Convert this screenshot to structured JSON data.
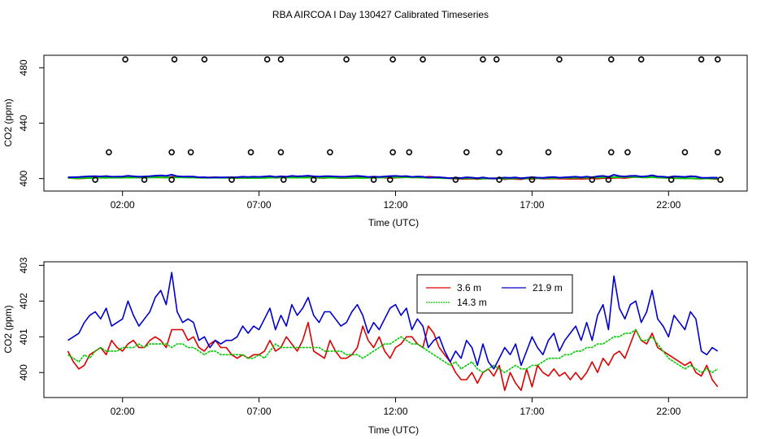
{
  "title": "RBA AIRCOA I  Day 130427  Calibrated Timeseries",
  "colors": {
    "red": "#dd0000",
    "green": "#00cc00",
    "blue": "#0000cc",
    "black": "#000000"
  },
  "chart_data": [
    {
      "type": "scatter",
      "name": "upper",
      "xlabel": "Time (UTC)",
      "ylabel": "CO2 (ppm)",
      "xlim": [
        -0.88,
        24.88
      ],
      "ylim": [
        391,
        489
      ],
      "xticks": [
        2,
        7,
        12,
        17,
        22
      ],
      "xtick_labels": [
        "02:00",
        "07:00",
        "12:00",
        "17:00",
        "22:00"
      ],
      "yticks": [
        400,
        440,
        480
      ],
      "ytick_labels": [
        "400",
        "440",
        "480"
      ],
      "points_high": [
        [
          2.1,
          486
        ],
        [
          3.9,
          486
        ],
        [
          5.0,
          486
        ],
        [
          7.3,
          486
        ],
        [
          7.8,
          486
        ],
        [
          10.2,
          486
        ],
        [
          11.9,
          486
        ],
        [
          13.0,
          486
        ],
        [
          15.2,
          486
        ],
        [
          15.7,
          486
        ],
        [
          18.0,
          486
        ],
        [
          19.9,
          486
        ],
        [
          21.0,
          486
        ],
        [
          23.2,
          486
        ],
        [
          23.8,
          486
        ]
      ],
      "points_mid": [
        [
          1.5,
          419
        ],
        [
          3.8,
          419
        ],
        [
          4.5,
          419
        ],
        [
          6.7,
          419
        ],
        [
          7.8,
          419
        ],
        [
          9.6,
          419
        ],
        [
          11.9,
          419
        ],
        [
          12.5,
          419
        ],
        [
          14.6,
          419
        ],
        [
          15.8,
          419
        ],
        [
          17.6,
          419
        ],
        [
          19.9,
          419
        ],
        [
          20.5,
          419
        ],
        [
          22.6,
          419
        ],
        [
          23.8,
          419
        ]
      ],
      "points_low": [
        [
          1.0,
          399.2
        ],
        [
          2.8,
          399.2
        ],
        [
          3.8,
          399.2
        ],
        [
          6.0,
          399.2
        ],
        [
          7.9,
          399.2
        ],
        [
          9.0,
          399.2
        ],
        [
          11.2,
          399.2
        ],
        [
          11.8,
          399.2
        ],
        [
          14.2,
          399.2
        ],
        [
          15.8,
          399.2
        ],
        [
          17.0,
          399.2
        ],
        [
          19.2,
          399.2
        ],
        [
          19.8,
          399.2
        ],
        [
          22.1,
          399.2
        ],
        [
          23.9,
          399.2
        ]
      ]
    },
    {
      "type": "line",
      "name": "lower",
      "xlabel": "Time (UTC)",
      "ylabel": "CO2 (ppm)",
      "xlim": [
        -0.88,
        24.88
      ],
      "ylim": [
        399.3,
        403.1
      ],
      "xticks": [
        2,
        7,
        12,
        17,
        22
      ],
      "xtick_labels": [
        "02:00",
        "07:00",
        "12:00",
        "17:00",
        "22:00"
      ],
      "yticks": [
        400,
        401,
        402,
        403
      ],
      "ytick_labels": [
        "400",
        "401",
        "402",
        "403"
      ],
      "legend": {
        "position": "top-center",
        "entries": [
          "3.6 m",
          "21.9 m",
          "14.3 m"
        ]
      },
      "series": [
        {
          "name": "3.6 m",
          "color": "red",
          "x": [
            0.0,
            0.2,
            0.4,
            0.6,
            0.8,
            1.0,
            1.2,
            1.4,
            1.6,
            1.8,
            2.0,
            2.2,
            2.4,
            2.6,
            2.8,
            3.0,
            3.2,
            3.4,
            3.6,
            3.8,
            4.0,
            4.2,
            4.4,
            4.6,
            4.8,
            5.0,
            5.2,
            5.4,
            5.6,
            5.8,
            6.0,
            6.2,
            6.4,
            6.6,
            6.8,
            7.0,
            7.2,
            7.4,
            7.6,
            7.8,
            8.0,
            8.2,
            8.4,
            8.6,
            8.8,
            9.0,
            9.2,
            9.4,
            9.6,
            9.8,
            10.0,
            10.2,
            10.4,
            10.6,
            10.8,
            11.0,
            11.2,
            11.4,
            11.6,
            11.8,
            12.0,
            12.2,
            12.4,
            12.6,
            12.8,
            13.0,
            13.2,
            13.4,
            13.6,
            13.8,
            14.0,
            14.2,
            14.4,
            14.6,
            14.8,
            15.0,
            15.2,
            15.4,
            15.6,
            15.8,
            16.0,
            16.2,
            16.4,
            16.6,
            16.8,
            17.0,
            17.2,
            17.4,
            17.6,
            17.8,
            18.0,
            18.2,
            18.4,
            18.6,
            18.8,
            19.0,
            19.2,
            19.4,
            19.6,
            19.8,
            20.0,
            20.2,
            20.4,
            20.6,
            20.8,
            21.0,
            21.2,
            21.4,
            21.6,
            21.8,
            22.0,
            22.2,
            22.4,
            22.6,
            22.8,
            23.0,
            23.2,
            23.4,
            23.6,
            23.8
          ],
          "values": [
            400.6,
            400.3,
            400.1,
            400.2,
            400.5,
            400.6,
            400.7,
            400.5,
            400.9,
            400.7,
            400.6,
            400.8,
            400.9,
            400.7,
            400.7,
            400.9,
            401.0,
            400.9,
            400.7,
            401.2,
            401.2,
            401.2,
            400.9,
            401.0,
            400.7,
            400.6,
            400.8,
            400.9,
            400.7,
            400.7,
            400.5,
            400.4,
            400.5,
            400.4,
            400.5,
            400.5,
            400.6,
            400.9,
            400.6,
            400.7,
            401.0,
            400.8,
            400.6,
            400.9,
            401.4,
            400.6,
            400.5,
            400.4,
            400.9,
            400.6,
            400.4,
            400.4,
            400.5,
            400.7,
            401.3,
            400.9,
            400.7,
            401.0,
            400.6,
            400.4,
            400.7,
            400.8,
            401.0,
            401.0,
            400.8,
            400.7,
            401.3,
            401.1,
            400.7,
            400.5,
            400.3,
            400.0,
            399.8,
            399.8,
            400.0,
            399.7,
            400.0,
            400.1,
            399.9,
            400.2,
            399.5,
            400.0,
            399.7,
            399.5,
            400.1,
            399.6,
            400.2,
            400.0,
            399.9,
            400.1,
            399.9,
            400.0,
            399.8,
            400.0,
            399.8,
            400.0,
            400.3,
            400.0,
            400.4,
            400.2,
            400.5,
            400.6,
            400.4,
            400.8,
            401.2,
            400.9,
            400.8,
            401.1,
            400.7,
            400.6,
            400.5,
            400.4,
            400.3,
            400.2,
            400.3,
            400.0,
            399.9,
            400.2,
            399.8,
            399.6
          ]
        },
        {
          "name": "14.3 m",
          "color": "green",
          "x": [
            0.0,
            0.2,
            0.4,
            0.6,
            0.8,
            1.0,
            1.2,
            1.4,
            1.6,
            1.8,
            2.0,
            2.2,
            2.4,
            2.6,
            2.8,
            3.0,
            3.2,
            3.4,
            3.6,
            3.8,
            4.0,
            4.2,
            4.4,
            4.6,
            4.8,
            5.0,
            5.2,
            5.4,
            5.6,
            5.8,
            6.0,
            6.2,
            6.4,
            6.6,
            6.8,
            7.0,
            7.2,
            7.4,
            7.6,
            7.8,
            8.0,
            8.2,
            8.4,
            8.6,
            8.8,
            9.0,
            9.2,
            9.4,
            9.6,
            9.8,
            10.0,
            10.2,
            10.4,
            10.6,
            10.8,
            11.0,
            11.2,
            11.4,
            11.6,
            11.8,
            12.0,
            12.2,
            12.4,
            12.6,
            12.8,
            13.0,
            13.2,
            13.4,
            13.6,
            13.8,
            14.0,
            14.2,
            14.4,
            14.6,
            14.8,
            15.0,
            15.2,
            15.4,
            15.6,
            15.8,
            16.0,
            16.2,
            16.4,
            16.6,
            16.8,
            17.0,
            17.2,
            17.4,
            17.6,
            17.8,
            18.0,
            18.2,
            18.4,
            18.6,
            18.8,
            19.0,
            19.2,
            19.4,
            19.6,
            19.8,
            20.0,
            20.2,
            20.4,
            20.6,
            20.8,
            21.0,
            21.2,
            21.4,
            21.6,
            21.8,
            22.0,
            22.2,
            22.4,
            22.6,
            22.8,
            23.0,
            23.2,
            23.4,
            23.6,
            23.8
          ],
          "values": [
            400.5,
            400.4,
            400.3,
            400.5,
            400.4,
            400.6,
            400.7,
            400.6,
            400.6,
            400.6,
            400.7,
            400.7,
            400.7,
            400.8,
            400.7,
            400.8,
            400.8,
            400.8,
            400.8,
            400.7,
            400.8,
            400.8,
            400.7,
            400.7,
            400.6,
            400.5,
            400.6,
            400.6,
            400.5,
            400.5,
            400.5,
            400.5,
            400.5,
            400.4,
            400.4,
            400.5,
            400.4,
            400.6,
            400.8,
            400.7,
            400.7,
            400.7,
            400.7,
            400.7,
            400.7,
            400.7,
            400.7,
            400.6,
            400.6,
            400.6,
            400.6,
            400.5,
            400.5,
            400.5,
            400.4,
            400.5,
            400.6,
            400.7,
            400.8,
            400.8,
            400.9,
            401.0,
            400.9,
            400.8,
            400.8,
            400.7,
            400.6,
            400.5,
            400.4,
            400.3,
            400.2,
            400.3,
            400.1,
            400.2,
            400.3,
            400.1,
            400.0,
            400.1,
            400.2,
            400.1,
            400.0,
            400.1,
            400.2,
            400.1,
            400.1,
            400.2,
            400.2,
            400.3,
            400.4,
            400.4,
            400.4,
            400.5,
            400.5,
            400.6,
            400.6,
            400.7,
            400.7,
            400.8,
            400.8,
            400.9,
            401.0,
            401.0,
            401.1,
            401.1,
            401.2,
            400.9,
            400.9,
            401.0,
            400.8,
            400.6,
            400.4,
            400.3,
            400.2,
            400.1,
            400.2,
            400.1,
            400.0,
            400.1,
            400.0,
            400.1
          ]
        },
        {
          "name": "21.9 m",
          "color": "blue",
          "x": [
            0.0,
            0.2,
            0.4,
            0.6,
            0.8,
            1.0,
            1.2,
            1.4,
            1.6,
            1.8,
            2.0,
            2.2,
            2.4,
            2.6,
            2.8,
            3.0,
            3.2,
            3.4,
            3.6,
            3.8,
            4.0,
            4.2,
            4.4,
            4.6,
            4.8,
            5.0,
            5.2,
            5.4,
            5.6,
            5.8,
            6.0,
            6.2,
            6.4,
            6.6,
            6.8,
            7.0,
            7.2,
            7.4,
            7.6,
            7.8,
            8.0,
            8.2,
            8.4,
            8.6,
            8.8,
            9.0,
            9.2,
            9.4,
            9.6,
            9.8,
            10.0,
            10.2,
            10.4,
            10.6,
            10.8,
            11.0,
            11.2,
            11.4,
            11.6,
            11.8,
            12.0,
            12.2,
            12.4,
            12.6,
            12.8,
            13.0,
            13.2,
            13.4,
            13.6,
            13.8,
            14.0,
            14.2,
            14.4,
            14.6,
            14.8,
            15.0,
            15.2,
            15.4,
            15.6,
            15.8,
            16.0,
            16.2,
            16.4,
            16.6,
            16.8,
            17.0,
            17.2,
            17.4,
            17.6,
            17.8,
            18.0,
            18.2,
            18.4,
            18.6,
            18.8,
            19.0,
            19.2,
            19.4,
            19.6,
            19.8,
            20.0,
            20.2,
            20.4,
            20.6,
            20.8,
            21.0,
            21.2,
            21.4,
            21.6,
            21.8,
            22.0,
            22.2,
            22.4,
            22.6,
            22.8,
            23.0,
            23.2,
            23.4,
            23.6,
            23.8
          ],
          "values": [
            400.9,
            401.0,
            401.1,
            401.4,
            401.6,
            401.7,
            401.5,
            401.8,
            401.3,
            401.4,
            401.5,
            402.0,
            401.6,
            401.3,
            401.5,
            401.7,
            402.1,
            402.3,
            401.9,
            402.8,
            401.7,
            401.4,
            401.5,
            401.4,
            400.9,
            401.0,
            400.7,
            400.9,
            400.8,
            400.9,
            400.9,
            401.0,
            401.3,
            401.1,
            401.3,
            401.2,
            401.5,
            401.8,
            401.2,
            401.6,
            401.3,
            401.9,
            401.6,
            401.8,
            402.1,
            401.6,
            401.4,
            401.7,
            401.7,
            401.5,
            401.3,
            401.4,
            401.7,
            401.9,
            401.6,
            401.1,
            401.4,
            401.2,
            401.5,
            401.8,
            401.9,
            401.6,
            401.8,
            401.2,
            401.5,
            401.3,
            400.7,
            400.9,
            401.0,
            400.6,
            400.3,
            400.6,
            400.4,
            400.9,
            400.7,
            400.2,
            400.8,
            400.3,
            400.1,
            400.4,
            400.7,
            400.5,
            400.8,
            400.2,
            400.6,
            401.0,
            400.7,
            400.5,
            400.9,
            401.1,
            400.6,
            400.9,
            401.1,
            401.3,
            400.9,
            401.4,
            400.9,
            401.6,
            401.9,
            401.2,
            402.7,
            401.8,
            401.5,
            401.9,
            402.0,
            401.4,
            401.7,
            402.3,
            401.5,
            401.3,
            401.0,
            401.6,
            401.4,
            401.2,
            401.7,
            401.5,
            400.6,
            400.5,
            400.7,
            400.6
          ]
        }
      ]
    }
  ]
}
